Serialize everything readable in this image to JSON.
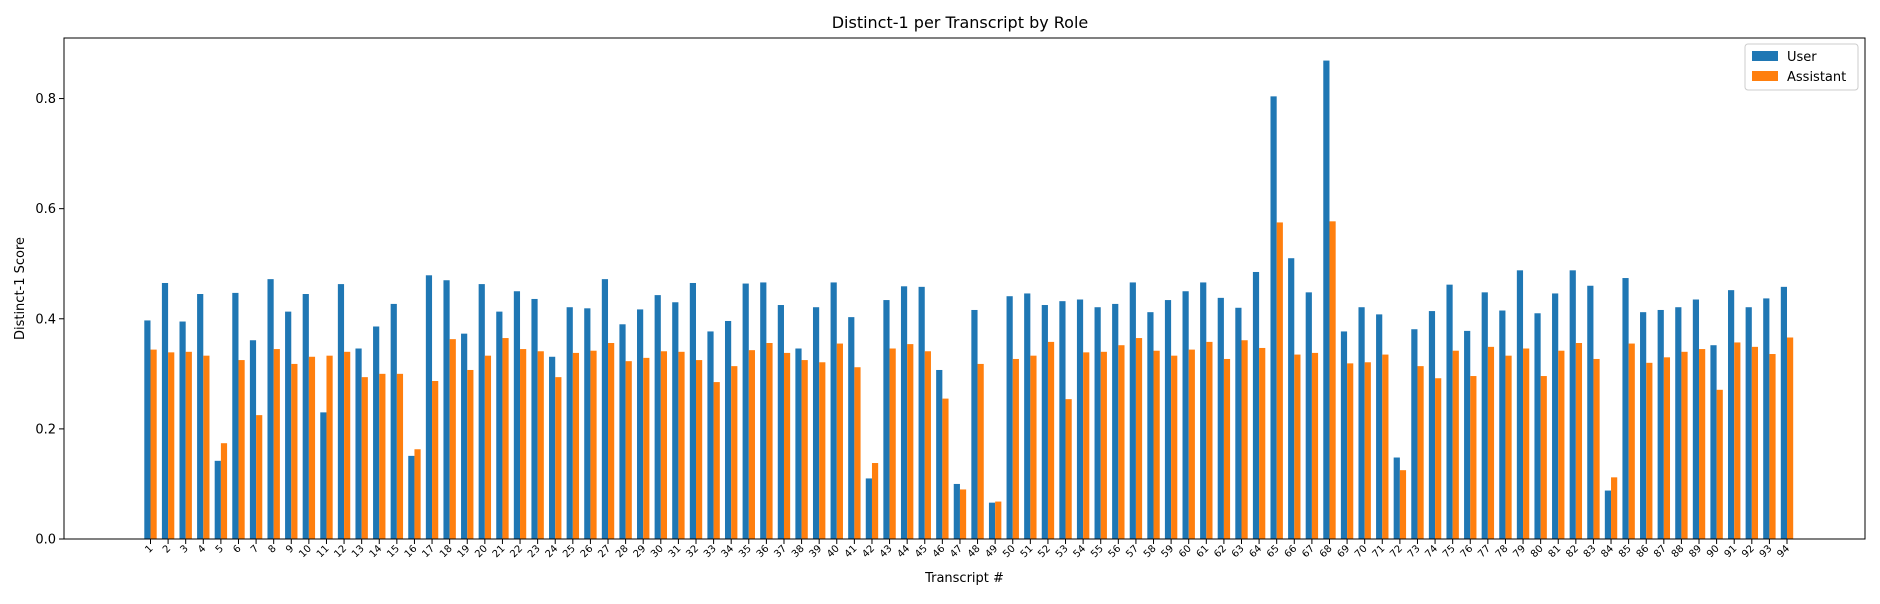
{
  "chart_data": {
    "type": "bar",
    "title": "Distinct-1 per Transcript by Role",
    "xlabel": "Transcript #",
    "ylabel": "Distinct-1 Score",
    "ylim": [
      0,
      0.91
    ],
    "yticks": [
      0.0,
      0.2,
      0.4,
      0.6,
      0.8
    ],
    "ytick_labels": [
      "0.0",
      "0.2",
      "0.4",
      "0.6",
      "0.8"
    ],
    "legend_position": "top-right",
    "grid": false,
    "categories": [
      "1",
      "2",
      "3",
      "4",
      "5",
      "6",
      "7",
      "8",
      "9",
      "10",
      "11",
      "12",
      "13",
      "14",
      "15",
      "16",
      "17",
      "18",
      "19",
      "20",
      "21",
      "22",
      "23",
      "24",
      "25",
      "26",
      "27",
      "28",
      "29",
      "30",
      "31",
      "32",
      "33",
      "34",
      "35",
      "36",
      "37",
      "38",
      "39",
      "40",
      "41",
      "42",
      "43",
      "44",
      "45",
      "46",
      "47",
      "48",
      "49",
      "50",
      "51",
      "52",
      "53",
      "54",
      "55",
      "56",
      "57",
      "58",
      "59",
      "60",
      "61",
      "62",
      "63",
      "64",
      "65",
      "66",
      "67",
      "68",
      "69",
      "70",
      "71",
      "72",
      "73",
      "74",
      "75",
      "76",
      "77",
      "78",
      "79",
      "80",
      "81",
      "82",
      "83",
      "84",
      "85",
      "86",
      "87",
      "88",
      "89",
      "90",
      "91",
      "92",
      "93",
      "94"
    ],
    "series": [
      {
        "name": "User",
        "color": "#1f77b4",
        "values": [
          0.397,
          0.465,
          0.395,
          0.445,
          0.142,
          0.447,
          0.361,
          0.472,
          0.413,
          0.445,
          0.23,
          0.463,
          0.346,
          0.386,
          0.427,
          0.151,
          0.479,
          0.47,
          0.373,
          0.463,
          0.413,
          0.45,
          0.436,
          0.331,
          0.421,
          0.419,
          0.472,
          0.39,
          0.417,
          0.443,
          0.43,
          0.465,
          0.377,
          0.396,
          0.464,
          0.466,
          0.425,
          0.346,
          0.421,
          0.466,
          0.403,
          0.11,
          0.434,
          0.459,
          0.458,
          0.307,
          0.1,
          0.416,
          0.066,
          0.441,
          0.446,
          0.425,
          0.432,
          0.435,
          0.421,
          0.427,
          0.466,
          0.412,
          0.434,
          0.45,
          0.466,
          0.438,
          0.42,
          0.485,
          0.804,
          0.51,
          0.448,
          0.869,
          0.377,
          0.421,
          0.408,
          0.148,
          0.381,
          0.414,
          0.462,
          0.378,
          0.448,
          0.415,
          0.488,
          0.41,
          0.446,
          0.488,
          0.46,
          0.088,
          0.474,
          0.412,
          0.416,
          0.421,
          0.435,
          0.352,
          0.452,
          0.421,
          0.437,
          0.458
        ]
      },
      {
        "name": "Assistant",
        "color": "#ff7f0e",
        "values": [
          0.344,
          0.339,
          0.34,
          0.333,
          0.174,
          0.325,
          0.225,
          0.345,
          0.318,
          0.331,
          0.333,
          0.34,
          0.294,
          0.3,
          0.3,
          0.163,
          0.287,
          0.363,
          0.307,
          0.333,
          0.365,
          0.345,
          0.341,
          0.294,
          0.338,
          0.342,
          0.356,
          0.323,
          0.329,
          0.341,
          0.34,
          0.325,
          0.285,
          0.314,
          0.343,
          0.356,
          0.338,
          0.325,
          0.321,
          0.355,
          0.312,
          0.138,
          0.346,
          0.354,
          0.341,
          0.255,
          0.09,
          0.318,
          0.068,
          0.327,
          0.333,
          0.358,
          0.254,
          0.339,
          0.34,
          0.352,
          0.365,
          0.342,
          0.333,
          0.344,
          0.358,
          0.327,
          0.361,
          0.347,
          0.575,
          0.335,
          0.338,
          0.577,
          0.319,
          0.321,
          0.335,
          0.125,
          0.314,
          0.292,
          0.342,
          0.296,
          0.349,
          0.333,
          0.346,
          0.296,
          0.342,
          0.356,
          0.327,
          0.112,
          0.355,
          0.32,
          0.33,
          0.34,
          0.345,
          0.271,
          0.357,
          0.349,
          0.336,
          0.366
        ]
      }
    ]
  }
}
